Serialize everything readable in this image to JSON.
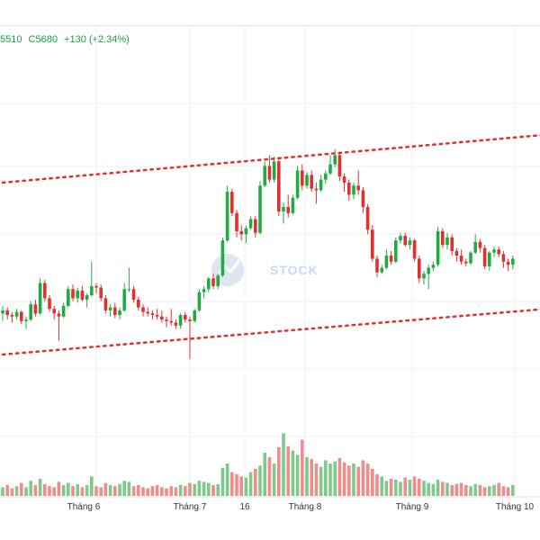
{
  "ohlc": {
    "low_text": "5510",
    "close_text": "C5680",
    "change_text": "+130 (+2.34%)",
    "up_color": "#16a34a"
  },
  "watermark": {
    "text": "STOCK",
    "icon": "chart-logo-icon"
  },
  "colors": {
    "up": "#22aa44",
    "down": "#e03030",
    "up_volume": "#7fc98c",
    "down_volume": "#f08c8c",
    "trendline": "#e03030",
    "grid": "#f0f0f0"
  },
  "chart_data": {
    "type": "candlestick",
    "x_ticks": [
      "Tháng 6",
      "Tháng 7",
      "16",
      "Tháng 8",
      "Tháng 9",
      "Tháng 10"
    ],
    "price_range": [
      4200,
      6300
    ],
    "volume_range": [
      0,
      100
    ],
    "trendlines": [
      {
        "name": "upper-channel",
        "style": "dotted",
        "start": [
          0,
          5780
        ],
        "end": [
          118,
          6100
        ]
      },
      {
        "name": "lower-channel",
        "style": "dotted",
        "start": [
          0,
          4650
        ],
        "end": [
          118,
          4955
        ]
      }
    ],
    "grid": true,
    "candles": [
      [
        4920,
        4970,
        4870,
        4940
      ],
      [
        4940,
        4960,
        4880,
        4910
      ],
      [
        4910,
        4930,
        4860,
        4900
      ],
      [
        4900,
        4950,
        4880,
        4930
      ],
      [
        4930,
        4940,
        4850,
        4870
      ],
      [
        4870,
        4900,
        4820,
        4880
      ],
      [
        4880,
        5000,
        4870,
        4980
      ],
      [
        4980,
        5010,
        4900,
        4920
      ],
      [
        4920,
        5150,
        4910,
        5120
      ],
      [
        5120,
        5140,
        5000,
        5020
      ],
      [
        5020,
        5040,
        4930,
        4950
      ],
      [
        4950,
        4970,
        4880,
        4920
      ],
      [
        4920,
        4940,
        4740,
        4900
      ],
      [
        4900,
        4990,
        4890,
        4970
      ],
      [
        4970,
        5100,
        4960,
        5080
      ],
      [
        5080,
        5110,
        5000,
        5020
      ],
      [
        5020,
        5090,
        4990,
        5070
      ],
      [
        5070,
        5100,
        5000,
        5010
      ],
      [
        5010,
        5050,
        4960,
        5040
      ],
      [
        5040,
        5260,
        5030,
        5100
      ],
      [
        5100,
        5120,
        5050,
        5090
      ],
      [
        5090,
        5110,
        5000,
        5020
      ],
      [
        5020,
        5040,
        4920,
        4940
      ],
      [
        4940,
        4980,
        4900,
        4960
      ],
      [
        4960,
        4990,
        4890,
        4910
      ],
      [
        4910,
        4960,
        4880,
        4940
      ],
      [
        4940,
        5120,
        4930,
        5080
      ],
      [
        5080,
        5220,
        5060,
        5080
      ],
      [
        5080,
        5100,
        4990,
        5010
      ],
      [
        5010,
        5030,
        4940,
        4960
      ],
      [
        4960,
        4980,
        4900,
        4930
      ],
      [
        4930,
        4960,
        4900,
        4920
      ],
      [
        4920,
        4940,
        4880,
        4910
      ],
      [
        4910,
        4950,
        4880,
        4900
      ],
      [
        4900,
        4940,
        4860,
        4880
      ],
      [
        4880,
        4900,
        4830,
        4870
      ],
      [
        4870,
        4950,
        4840,
        4860
      ],
      [
        4860,
        4880,
        4820,
        4840
      ],
      [
        4840,
        4920,
        4820,
        4910
      ],
      [
        4910,
        4930,
        4860,
        4880
      ],
      [
        4880,
        4900,
        4620,
        4870
      ],
      [
        4870,
        4950,
        4860,
        4940
      ],
      [
        4940,
        5080,
        4930,
        5060
      ],
      [
        5060,
        5100,
        5020,
        5080
      ],
      [
        5080,
        5160,
        5060,
        5150
      ],
      [
        5150,
        5180,
        5080,
        5100
      ],
      [
        5100,
        5180,
        5080,
        5170
      ],
      [
        5170,
        5420,
        5160,
        5400
      ],
      [
        5400,
        5760,
        5390,
        5720
      ],
      [
        5720,
        5740,
        5560,
        5580
      ],
      [
        5580,
        5600,
        5420,
        5460
      ],
      [
        5460,
        5500,
        5400,
        5440
      ],
      [
        5440,
        5500,
        5380,
        5480
      ],
      [
        5480,
        5560,
        5470,
        5540
      ],
      [
        5540,
        5560,
        5420,
        5450
      ],
      [
        5450,
        5790,
        5440,
        5760
      ],
      [
        5760,
        5920,
        5750,
        5890
      ],
      [
        5890,
        5960,
        5780,
        5800
      ],
      [
        5800,
        5950,
        5780,
        5920
      ],
      [
        5920,
        5930,
        5560,
        5590
      ],
      [
        5590,
        5650,
        5510,
        5620
      ],
      [
        5620,
        5700,
        5550,
        5580
      ],
      [
        5580,
        5700,
        5570,
        5680
      ],
      [
        5680,
        5890,
        5670,
        5860
      ],
      [
        5860,
        5900,
        5730,
        5760
      ],
      [
        5760,
        5850,
        5740,
        5830
      ],
      [
        5830,
        5860,
        5720,
        5740
      ],
      [
        5740,
        5780,
        5640,
        5730
      ],
      [
        5730,
        5830,
        5720,
        5800
      ],
      [
        5800,
        5860,
        5770,
        5840
      ],
      [
        5840,
        5960,
        5830,
        5900
      ],
      [
        5900,
        6000,
        5880,
        5960
      ],
      [
        5960,
        5980,
        5790,
        5820
      ],
      [
        5820,
        5840,
        5720,
        5780
      ],
      [
        5780,
        5800,
        5660,
        5700
      ],
      [
        5700,
        5780,
        5670,
        5760
      ],
      [
        5760,
        5860,
        5700,
        5730
      ],
      [
        5730,
        5750,
        5580,
        5620
      ],
      [
        5620,
        5640,
        5440,
        5470
      ],
      [
        5470,
        5500,
        5260,
        5280
      ],
      [
        5280,
        5300,
        5160,
        5190
      ],
      [
        5190,
        5240,
        5180,
        5220
      ],
      [
        5220,
        5340,
        5210,
        5300
      ],
      [
        5300,
        5330,
        5240,
        5260
      ],
      [
        5260,
        5420,
        5250,
        5400
      ],
      [
        5400,
        5450,
        5380,
        5430
      ],
      [
        5430,
        5450,
        5360,
        5370
      ],
      [
        5370,
        5420,
        5340,
        5400
      ],
      [
        5400,
        5410,
        5260,
        5280
      ],
      [
        5280,
        5300,
        5120,
        5150
      ],
      [
        5150,
        5200,
        5110,
        5180
      ],
      [
        5180,
        5240,
        5080,
        5220
      ],
      [
        5220,
        5260,
        5200,
        5240
      ],
      [
        5240,
        5490,
        5230,
        5460
      ],
      [
        5460,
        5480,
        5350,
        5370
      ],
      [
        5370,
        5450,
        5340,
        5420
      ],
      [
        5420,
        5440,
        5300,
        5330
      ],
      [
        5330,
        5350,
        5260,
        5300
      ],
      [
        5300,
        5340,
        5240,
        5260
      ],
      [
        5260,
        5280,
        5230,
        5250
      ],
      [
        5250,
        5330,
        5240,
        5320
      ],
      [
        5320,
        5440,
        5310,
        5390
      ],
      [
        5390,
        5410,
        5320,
        5350
      ],
      [
        5350,
        5370,
        5210,
        5230
      ],
      [
        5230,
        5330,
        5200,
        5320
      ],
      [
        5320,
        5360,
        5290,
        5340
      ],
      [
        5340,
        5360,
        5290,
        5310
      ],
      [
        5310,
        5330,
        5220,
        5260
      ],
      [
        5260,
        5280,
        5200,
        5240
      ],
      [
        5240,
        5300,
        5210,
        5280
      ]
    ],
    "volume": [
      8,
      10,
      7,
      9,
      12,
      8,
      14,
      10,
      16,
      11,
      9,
      8,
      13,
      10,
      12,
      9,
      11,
      8,
      10,
      18,
      9,
      8,
      12,
      10,
      9,
      11,
      14,
      13,
      9,
      10,
      8,
      7,
      9,
      10,
      8,
      7,
      9,
      8,
      10,
      9,
      12,
      11,
      14,
      13,
      12,
      10,
      11,
      26,
      30,
      22,
      20,
      18,
      17,
      22,
      25,
      28,
      40,
      36,
      30,
      45,
      58,
      46,
      42,
      38,
      52,
      36,
      34,
      30,
      27,
      33,
      30,
      32,
      35,
      31,
      28,
      30,
      27,
      33,
      30,
      25,
      20,
      18,
      14,
      16,
      15,
      13,
      17,
      15,
      18,
      16,
      14,
      12,
      11,
      15,
      13,
      12,
      10,
      11,
      12,
      10,
      9,
      11,
      10,
      8,
      9,
      10,
      12,
      9,
      8,
      10
    ],
    "volume_up": [
      1,
      0,
      0,
      1,
      0,
      1,
      1,
      0,
      1,
      0,
      0,
      0,
      0,
      1,
      1,
      0,
      1,
      0,
      1,
      1,
      0,
      0,
      0,
      1,
      0,
      1,
      1,
      1,
      0,
      0,
      0,
      0,
      0,
      0,
      0,
      0,
      0,
      0,
      1,
      0,
      0,
      1,
      1,
      1,
      1,
      0,
      1,
      1,
      1,
      0,
      0,
      0,
      1,
      1,
      0,
      1,
      1,
      0,
      1,
      0,
      1,
      0,
      1,
      1,
      0,
      1,
      0,
      0,
      1,
      1,
      1,
      1,
      0,
      0,
      0,
      1,
      0,
      0,
      0,
      0,
      0,
      1,
      1,
      0,
      1,
      1,
      0,
      1,
      0,
      0,
      1,
      1,
      1,
      1,
      0,
      1,
      0,
      0,
      0,
      0,
      1,
      1,
      0,
      0,
      1,
      1,
      0,
      0,
      0,
      1
    ]
  }
}
